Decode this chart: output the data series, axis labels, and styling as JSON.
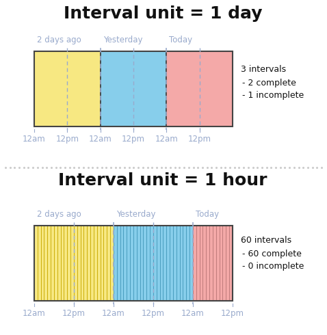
{
  "bg_color": "#ffffff",
  "title1": "Interval unit = 1 day",
  "title2": "Interval unit = 1 hour",
  "color_yellow": "#f7e882",
  "color_blue": "#87ceeb",
  "color_pink": "#f4a9a8",
  "color_yellow_stroke": "#c8aa00",
  "color_blue_stroke": "#4499bb",
  "color_pink_stroke": "#bb7777",
  "label_color": "#99aacc",
  "text_color": "#111111",
  "tick_labels": [
    "12am",
    "12pm",
    "12am",
    "12pm",
    "12am",
    "12pm"
  ],
  "day_labels": [
    "2 days ago",
    "Yesterday",
    "Today"
  ],
  "annotation1": [
    "3 intervals",
    "- 2 complete",
    "- 1 incomplete"
  ],
  "annotation2": [
    "60 intervals",
    "- 60 complete",
    "- 0 incomplete"
  ],
  "divider_color": "#99aacc",
  "separator_dot_color": "#cccccc",
  "border_color": "#444444"
}
